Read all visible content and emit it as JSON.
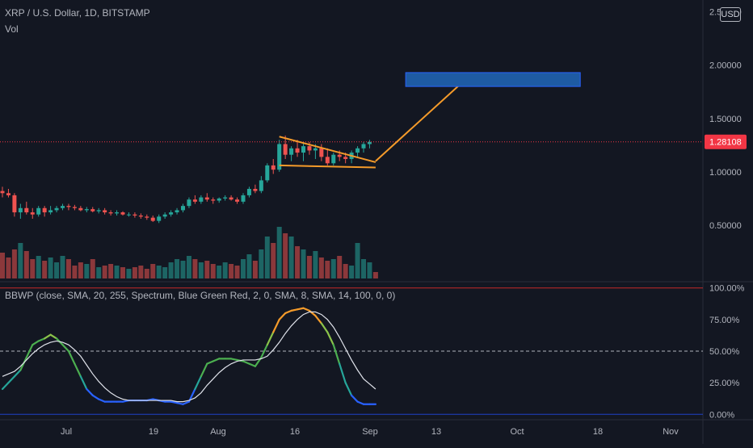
{
  "header": {
    "symbol_title": "XRP / U.S. Dollar, 1D, BITSTAMP",
    "volume_label": "Vol",
    "currency_badge": "USD"
  },
  "indicator": {
    "title": "BBWP (close, SMA, 20, 255, Spectrum, Blue Green Red, 2, 0, SMA, 8, SMA, 14, 100, 0, 0)"
  },
  "colors": {
    "background": "#131722",
    "up": "#26a69a",
    "down": "#ef5350",
    "drawing": "#f59b2a",
    "target_box": "#1e5ba3",
    "price_tag": "#f23645"
  },
  "chart_data": [
    {
      "type": "candlestick",
      "name": "XRP / U.S. Dollar, 1D, BITSTAMP",
      "x_tick_labels": [
        "Jul",
        "19",
        "Aug",
        "16",
        "Sep",
        "13",
        "Oct",
        "18",
        "Nov"
      ],
      "y_tick_labels": [
        "2.50000",
        "2.00000",
        "1.50000",
        "1.00000",
        "0.50000"
      ],
      "y_ticks": [
        2.5,
        2.0,
        1.5,
        1.0,
        0.5
      ],
      "ylim": [
        0.0,
        2.55
      ],
      "last_price_label": "1.28108",
      "last_price": 1.28108,
      "candles": [
        {
          "o": 0.82,
          "h": 0.86,
          "l": 0.76,
          "c": 0.8
        },
        {
          "o": 0.8,
          "h": 0.84,
          "l": 0.76,
          "c": 0.78
        },
        {
          "o": 0.78,
          "h": 0.8,
          "l": 0.58,
          "c": 0.62
        },
        {
          "o": 0.62,
          "h": 0.7,
          "l": 0.56,
          "c": 0.66
        },
        {
          "o": 0.66,
          "h": 0.72,
          "l": 0.6,
          "c": 0.62
        },
        {
          "o": 0.62,
          "h": 0.66,
          "l": 0.56,
          "c": 0.6
        },
        {
          "o": 0.6,
          "h": 0.68,
          "l": 0.58,
          "c": 0.66
        },
        {
          "o": 0.66,
          "h": 0.68,
          "l": 0.58,
          "c": 0.62
        },
        {
          "o": 0.62,
          "h": 0.68,
          "l": 0.6,
          "c": 0.64
        },
        {
          "o": 0.64,
          "h": 0.68,
          "l": 0.62,
          "c": 0.66
        },
        {
          "o": 0.66,
          "h": 0.7,
          "l": 0.64,
          "c": 0.68
        },
        {
          "o": 0.68,
          "h": 0.7,
          "l": 0.64,
          "c": 0.67
        },
        {
          "o": 0.67,
          "h": 0.69,
          "l": 0.64,
          "c": 0.66
        },
        {
          "o": 0.66,
          "h": 0.68,
          "l": 0.63,
          "c": 0.64
        },
        {
          "o": 0.64,
          "h": 0.67,
          "l": 0.62,
          "c": 0.65
        },
        {
          "o": 0.65,
          "h": 0.67,
          "l": 0.62,
          "c": 0.63
        },
        {
          "o": 0.63,
          "h": 0.66,
          "l": 0.61,
          "c": 0.64
        },
        {
          "o": 0.64,
          "h": 0.66,
          "l": 0.6,
          "c": 0.62
        },
        {
          "o": 0.62,
          "h": 0.64,
          "l": 0.59,
          "c": 0.61
        },
        {
          "o": 0.61,
          "h": 0.64,
          "l": 0.59,
          "c": 0.62
        },
        {
          "o": 0.62,
          "h": 0.63,
          "l": 0.59,
          "c": 0.6
        },
        {
          "o": 0.6,
          "h": 0.62,
          "l": 0.58,
          "c": 0.6
        },
        {
          "o": 0.6,
          "h": 0.62,
          "l": 0.57,
          "c": 0.59
        },
        {
          "o": 0.59,
          "h": 0.61,
          "l": 0.56,
          "c": 0.58
        },
        {
          "o": 0.58,
          "h": 0.6,
          "l": 0.55,
          "c": 0.57
        },
        {
          "o": 0.57,
          "h": 0.59,
          "l": 0.53,
          "c": 0.54
        },
        {
          "o": 0.54,
          "h": 0.6,
          "l": 0.52,
          "c": 0.58
        },
        {
          "o": 0.58,
          "h": 0.62,
          "l": 0.56,
          "c": 0.6
        },
        {
          "o": 0.6,
          "h": 0.64,
          "l": 0.58,
          "c": 0.62
        },
        {
          "o": 0.62,
          "h": 0.66,
          "l": 0.6,
          "c": 0.64
        },
        {
          "o": 0.64,
          "h": 0.7,
          "l": 0.62,
          "c": 0.68
        },
        {
          "o": 0.68,
          "h": 0.76,
          "l": 0.66,
          "c": 0.74
        },
        {
          "o": 0.74,
          "h": 0.78,
          "l": 0.7,
          "c": 0.72
        },
        {
          "o": 0.72,
          "h": 0.78,
          "l": 0.7,
          "c": 0.76
        },
        {
          "o": 0.76,
          "h": 0.8,
          "l": 0.72,
          "c": 0.74
        },
        {
          "o": 0.74,
          "h": 0.76,
          "l": 0.7,
          "c": 0.73
        },
        {
          "o": 0.73,
          "h": 0.76,
          "l": 0.71,
          "c": 0.75
        },
        {
          "o": 0.75,
          "h": 0.78,
          "l": 0.73,
          "c": 0.76
        },
        {
          "o": 0.76,
          "h": 0.78,
          "l": 0.73,
          "c": 0.74
        },
        {
          "o": 0.74,
          "h": 0.76,
          "l": 0.7,
          "c": 0.72
        },
        {
          "o": 0.72,
          "h": 0.8,
          "l": 0.7,
          "c": 0.78
        },
        {
          "o": 0.78,
          "h": 0.86,
          "l": 0.76,
          "c": 0.84
        },
        {
          "o": 0.84,
          "h": 0.88,
          "l": 0.8,
          "c": 0.82
        },
        {
          "o": 0.82,
          "h": 0.96,
          "l": 0.8,
          "c": 0.92
        },
        {
          "o": 0.92,
          "h": 1.08,
          "l": 0.9,
          "c": 1.06
        },
        {
          "o": 1.06,
          "h": 1.12,
          "l": 0.98,
          "c": 1.02
        },
        {
          "o": 1.02,
          "h": 1.3,
          "l": 1.0,
          "c": 1.26
        },
        {
          "o": 1.26,
          "h": 1.34,
          "l": 1.12,
          "c": 1.16
        },
        {
          "o": 1.16,
          "h": 1.24,
          "l": 1.1,
          "c": 1.22
        },
        {
          "o": 1.22,
          "h": 1.3,
          "l": 1.14,
          "c": 1.18
        },
        {
          "o": 1.18,
          "h": 1.28,
          "l": 1.1,
          "c": 1.24
        },
        {
          "o": 1.24,
          "h": 1.28,
          "l": 1.16,
          "c": 1.2
        },
        {
          "o": 1.2,
          "h": 1.26,
          "l": 1.12,
          "c": 1.22
        },
        {
          "o": 1.22,
          "h": 1.26,
          "l": 1.1,
          "c": 1.14
        },
        {
          "o": 1.14,
          "h": 1.22,
          "l": 1.06,
          "c": 1.08
        },
        {
          "o": 1.08,
          "h": 1.18,
          "l": 1.06,
          "c": 1.16
        },
        {
          "o": 1.16,
          "h": 1.2,
          "l": 1.1,
          "c": 1.14
        },
        {
          "o": 1.14,
          "h": 1.18,
          "l": 1.08,
          "c": 1.12
        },
        {
          "o": 1.12,
          "h": 1.2,
          "l": 1.08,
          "c": 1.18
        },
        {
          "o": 1.18,
          "h": 1.24,
          "l": 1.14,
          "c": 1.22
        },
        {
          "o": 1.22,
          "h": 1.28,
          "l": 1.18,
          "c": 1.26
        },
        {
          "o": 1.26,
          "h": 1.3,
          "l": 1.22,
          "c": 1.28
        }
      ],
      "volume": [
        16,
        13,
        18,
        22,
        17,
        12,
        14,
        11,
        13,
        10,
        14,
        12,
        8,
        10,
        9,
        12,
        7,
        8,
        9,
        8,
        7,
        6,
        7,
        8,
        6,
        9,
        8,
        7,
        10,
        12,
        11,
        14,
        12,
        10,
        11,
        9,
        8,
        10,
        9,
        8,
        12,
        15,
        11,
        18,
        26,
        22,
        32,
        28,
        26,
        20,
        18,
        14,
        17,
        13,
        11,
        12,
        14,
        9,
        8,
        22,
        12,
        10,
        4
      ],
      "drawings": {
        "triangle_upper": [
          [
            46,
            1.33
          ],
          [
            62,
            1.09
          ]
        ],
        "triangle_lower": [
          [
            46,
            1.06
          ],
          [
            62,
            1.04
          ]
        ],
        "projection": [
          [
            62,
            1.1
          ],
          [
            78,
            1.92
          ]
        ],
        "target_box": {
          "x": [
            67,
            96
          ],
          "y": [
            1.8,
            1.93
          ]
        }
      }
    },
    {
      "type": "line",
      "name": "BBWP (close, SMA, 20, 255, Spectrum, Blue Green Red, 2, 0, SMA, 8, SMA, 14, 100, 0, 0)",
      "y_tick_labels": [
        "100.00%",
        "75.00%",
        "50.00%",
        "25.00%",
        "0.00%"
      ],
      "y_ticks": [
        100,
        75,
        50,
        25,
        0
      ],
      "ylim": [
        -3,
        103
      ],
      "reference_lines": [
        100,
        50,
        0
      ],
      "series": [
        {
          "values": [
            20,
            25,
            30,
            35,
            45,
            55,
            58,
            60,
            63,
            60,
            55,
            50,
            40,
            30,
            20,
            15,
            12,
            10,
            10,
            10,
            10,
            11,
            11,
            11,
            11,
            12,
            11,
            10,
            10,
            9,
            8,
            10,
            20,
            30,
            40,
            42,
            44,
            44,
            44,
            43,
            42,
            40,
            38,
            45,
            55,
            65,
            75,
            80,
            82,
            83,
            84,
            82,
            78,
            72,
            65,
            55,
            40,
            25,
            15,
            10,
            8,
            8,
            8
          ],
          "color_scale": "Blue Green Red"
        },
        {
          "values": [
            30,
            32,
            34,
            38,
            43,
            48,
            52,
            55,
            57,
            58,
            57,
            55,
            51,
            46,
            39,
            32,
            26,
            21,
            17,
            14,
            12,
            11,
            11,
            11,
            11,
            11,
            11,
            11,
            11,
            10,
            10,
            11,
            13,
            17,
            23,
            28,
            33,
            37,
            40,
            42,
            43,
            43,
            43,
            44,
            46,
            51,
            57,
            64,
            70,
            75,
            79,
            81,
            81,
            79,
            75,
            69,
            61,
            52,
            43,
            35,
            28,
            24,
            20
          ]
        }
      ]
    }
  ]
}
